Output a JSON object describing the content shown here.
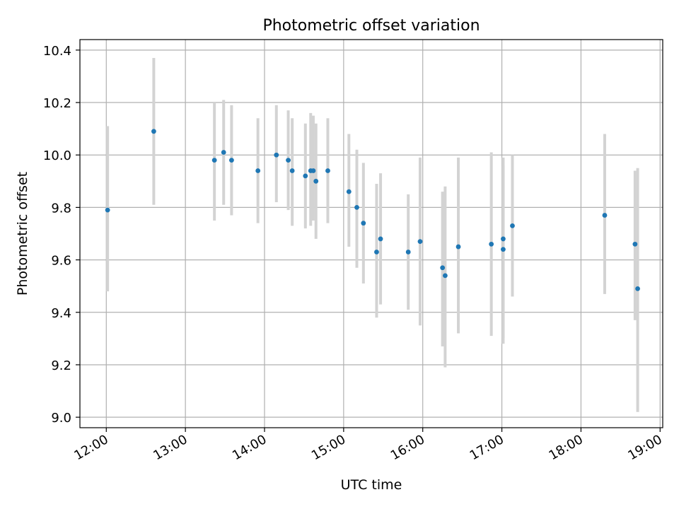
{
  "chart_data": {
    "type": "scatter",
    "title": "Photometric offset variation",
    "xlabel": "UTC time",
    "ylabel": "Photometric offset",
    "x_axis_kind": "time",
    "xlim": [
      "11:40",
      "19:02"
    ],
    "ylim": [
      8.96,
      10.44
    ],
    "x_ticks": [
      "12:00",
      "13:00",
      "14:00",
      "15:00",
      "16:00",
      "17:00",
      "18:00",
      "19:00"
    ],
    "y_ticks": [
      9.0,
      9.2,
      9.4,
      9.6,
      9.8,
      10.0,
      10.2,
      10.4
    ],
    "grid": true,
    "point_color": "#1f77b4",
    "errorbar_color": "#d3d3d3",
    "points": [
      {
        "x": "12:01",
        "y": 9.79,
        "low": 9.48,
        "high": 10.11
      },
      {
        "x": "12:36",
        "y": 10.09,
        "low": 9.81,
        "high": 10.37
      },
      {
        "x": "13:22",
        "y": 9.98,
        "low": 9.75,
        "high": 10.2
      },
      {
        "x": "13:29",
        "y": 10.01,
        "low": 9.81,
        "high": 10.21
      },
      {
        "x": "13:35",
        "y": 9.98,
        "low": 9.77,
        "high": 10.19
      },
      {
        "x": "13:55",
        "y": 9.94,
        "low": 9.74,
        "high": 10.14
      },
      {
        "x": "14:09",
        "y": 10.0,
        "low": 9.82,
        "high": 10.19
      },
      {
        "x": "14:18",
        "y": 9.98,
        "low": 9.79,
        "high": 10.17
      },
      {
        "x": "14:21",
        "y": 9.94,
        "low": 9.73,
        "high": 10.14
      },
      {
        "x": "14:31",
        "y": 9.92,
        "low": 9.72,
        "high": 10.12
      },
      {
        "x": "14:35",
        "y": 9.94,
        "low": 9.73,
        "high": 10.16
      },
      {
        "x": "14:37",
        "y": 9.94,
        "low": 9.75,
        "high": 10.15
      },
      {
        "x": "14:39",
        "y": 9.9,
        "low": 9.68,
        "high": 10.12
      },
      {
        "x": "14:48",
        "y": 9.94,
        "low": 9.74,
        "high": 10.14
      },
      {
        "x": "15:04",
        "y": 9.86,
        "low": 9.65,
        "high": 10.08
      },
      {
        "x": "15:10",
        "y": 9.8,
        "low": 9.57,
        "high": 10.02
      },
      {
        "x": "15:15",
        "y": 9.74,
        "low": 9.51,
        "high": 9.97
      },
      {
        "x": "15:25",
        "y": 9.63,
        "low": 9.38,
        "high": 9.89
      },
      {
        "x": "15:28",
        "y": 9.68,
        "low": 9.43,
        "high": 9.93
      },
      {
        "x": "15:49",
        "y": 9.63,
        "low": 9.41,
        "high": 9.85
      },
      {
        "x": "15:58",
        "y": 9.67,
        "low": 9.35,
        "high": 9.99
      },
      {
        "x": "16:15",
        "y": 9.57,
        "low": 9.27,
        "high": 9.86
      },
      {
        "x": "16:17",
        "y": 9.54,
        "low": 9.19,
        "high": 9.88
      },
      {
        "x": "16:27",
        "y": 9.65,
        "low": 9.32,
        "high": 9.99
      },
      {
        "x": "16:52",
        "y": 9.66,
        "low": 9.31,
        "high": 10.01
      },
      {
        "x": "17:01",
        "y": 9.68,
        "low": 9.28,
        "high": 9.96
      },
      {
        "x": "17:01",
        "y": 9.64,
        "low": 9.3,
        "high": 9.99
      },
      {
        "x": "17:08",
        "y": 9.73,
        "low": 9.46,
        "high": 10.0
      },
      {
        "x": "18:18",
        "y": 9.77,
        "low": 9.47,
        "high": 10.08
      },
      {
        "x": "18:41",
        "y": 9.66,
        "low": 9.37,
        "high": 9.94
      },
      {
        "x": "18:43",
        "y": 9.49,
        "low": 9.02,
        "high": 9.95
      }
    ]
  }
}
